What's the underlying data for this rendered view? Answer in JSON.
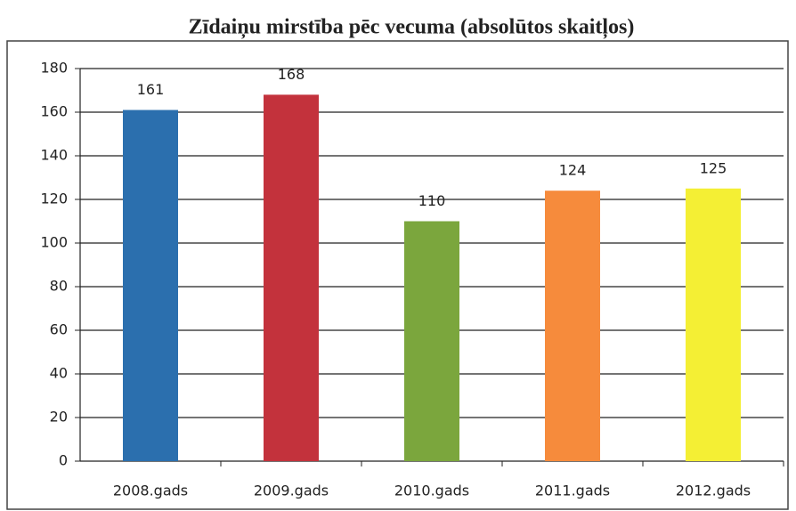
{
  "chart_data": {
    "type": "bar",
    "title": "Zīdaiņu mirstība pēc vecuma (absolūtos skaitļos)",
    "categories": [
      "2008.gads",
      "2009.gads",
      "2010.gads",
      "2011.gads",
      "2012.gads"
    ],
    "values": [
      161,
      168,
      110,
      124,
      125
    ],
    "colors": [
      "#2b6fae",
      "#c3323c",
      "#7ba63d",
      "#f68b3c",
      "#f4ef34"
    ],
    "ylim": [
      0,
      180
    ],
    "yticks": [
      0,
      20,
      40,
      60,
      80,
      100,
      120,
      140,
      160,
      180
    ],
    "grid": true
  }
}
